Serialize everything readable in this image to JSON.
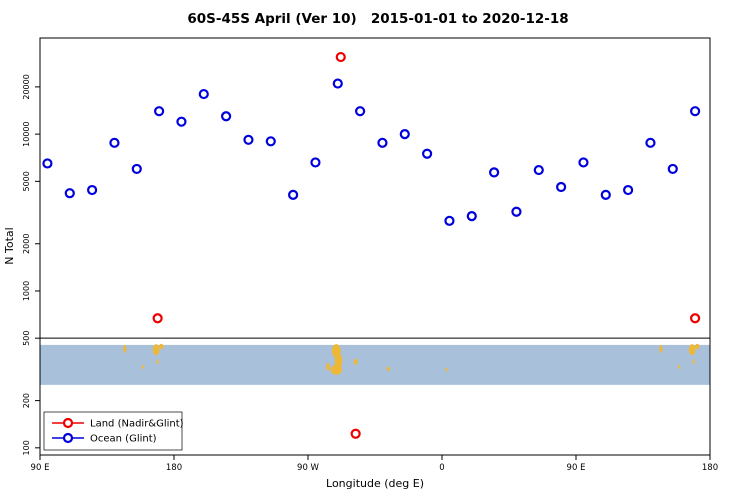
{
  "chart_data": {
    "type": "scatter",
    "title": "60S-45S April (Ver 10)   2015-01-01 to 2020-12-18",
    "xlabel": "Longitude (deg E)",
    "ylabel": "N Total",
    "x_range": [
      90,
      540
    ],
    "y_range": [
      90,
      41000
    ],
    "y_scale": "log",
    "grid": false,
    "x_ticks": [
      {
        "value": 90,
        "label": "90 E"
      },
      {
        "value": 180,
        "label": "180"
      },
      {
        "value": 270,
        "label": "90 W"
      },
      {
        "value": 360,
        "label": "0"
      },
      {
        "value": 450,
        "label": "90 E"
      },
      {
        "value": 540,
        "label": "180"
      }
    ],
    "y_ticks": [
      100,
      200,
      500,
      1000,
      2000,
      5000,
      10000,
      20000
    ],
    "series": [
      {
        "key": "land",
        "name": "Land (Nadir&Glint)",
        "color": "#ee0000",
        "marker": "open-circle",
        "points": [
          [
            169,
            670
          ],
          [
            292,
            31000
          ],
          [
            302,
            123
          ],
          [
            530,
            670
          ]
        ]
      },
      {
        "key": "ocean",
        "name": "Ocean (Glint)",
        "color": "#0000dd",
        "marker": "open-circle",
        "points": [
          [
            95,
            6500
          ],
          [
            110,
            4200
          ],
          [
            125,
            4400
          ],
          [
            140,
            8800
          ],
          [
            155,
            6000
          ],
          [
            170,
            14000
          ],
          [
            185,
            12000
          ],
          [
            200,
            18000
          ],
          [
            215,
            13000
          ],
          [
            230,
            9200
          ],
          [
            245,
            9000
          ],
          [
            260,
            4100
          ],
          [
            275,
            6600
          ],
          [
            290,
            21000
          ],
          [
            305,
            14000
          ],
          [
            320,
            8800
          ],
          [
            335,
            10000
          ],
          [
            350,
            7500
          ],
          [
            365,
            2800
          ],
          [
            380,
            3000
          ],
          [
            395,
            5700
          ],
          [
            410,
            3200
          ],
          [
            425,
            5900
          ],
          [
            440,
            4600
          ],
          [
            455,
            6600
          ],
          [
            470,
            4100
          ],
          [
            485,
            4400
          ],
          [
            500,
            8800
          ],
          [
            515,
            6000
          ],
          [
            530,
            14000
          ]
        ]
      }
    ],
    "map_band": {
      "description": "45S-60S latitude strip map",
      "color": "#a9c0da",
      "land_color": "#edb838",
      "top_value": 453,
      "bottom_value": 252,
      "line_value": 500,
      "land": [
        [
          147,
          0.1,
          1.0,
          0.1
        ],
        [
          159,
          0.55,
          0.4,
          0.05
        ],
        [
          168,
          0.12,
          2.2,
          0.14
        ],
        [
          171.5,
          0.04,
          1.5,
          0.07
        ],
        [
          169,
          0.42,
          0.6,
          0.06
        ],
        [
          289,
          0.15,
          3.0,
          0.17
        ],
        [
          290.5,
          0.4,
          2.6,
          0.18
        ],
        [
          289,
          0.62,
          3.8,
          0.13
        ],
        [
          283.5,
          0.55,
          1.2,
          0.1
        ],
        [
          302,
          0.42,
          1.3,
          0.08
        ],
        [
          324,
          0.6,
          1.0,
          0.06
        ],
        [
          363,
          0.62,
          0.4,
          0.05
        ],
        [
          507,
          0.1,
          1.0,
          0.1
        ],
        [
          519,
          0.55,
          0.4,
          0.05
        ],
        [
          528,
          0.12,
          2.2,
          0.14
        ],
        [
          531.5,
          0.04,
          1.5,
          0.07
        ],
        [
          529,
          0.42,
          0.6,
          0.06
        ]
      ]
    },
    "legend": {
      "position": "bottom-left",
      "entries": [
        "Land (Nadir&Glint)",
        "Ocean (Glint)"
      ]
    }
  }
}
